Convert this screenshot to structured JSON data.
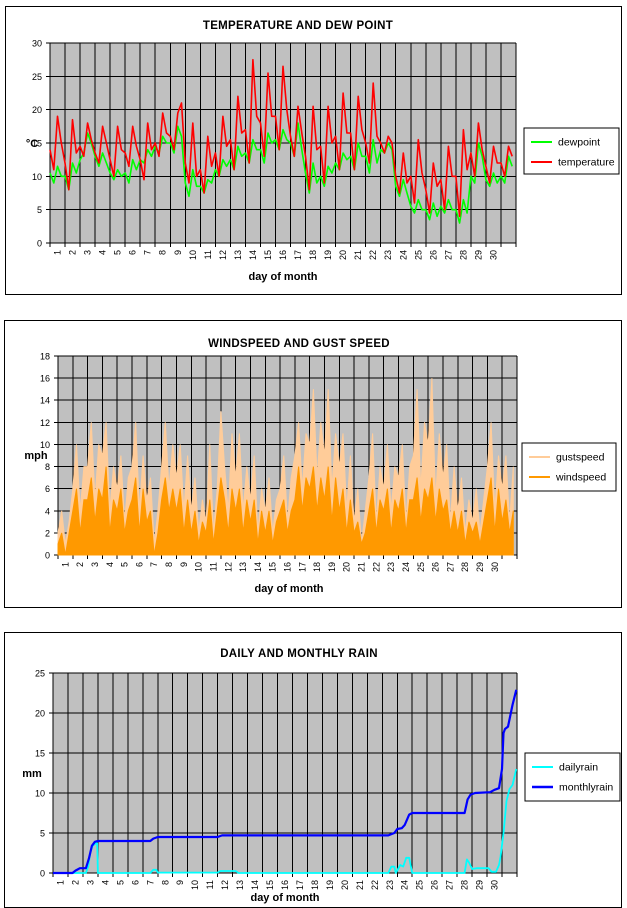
{
  "page": {
    "background": "#FFFFFF",
    "plot_background": "#C0C0C0",
    "grid_color": "#000000"
  },
  "chart_data": [
    {
      "type": "line",
      "title": "TEMPERATURE AND DEW POINT",
      "y_axis": {
        "unit": "°C",
        "min": 0,
        "max": 30,
        "step": 5,
        "ticks": [
          0,
          5,
          10,
          15,
          20,
          25,
          30
        ]
      },
      "x_axis": {
        "label": "day of month",
        "min": 1,
        "max": 32,
        "ticks": [
          1,
          2,
          3,
          4,
          5,
          6,
          7,
          8,
          9,
          10,
          11,
          12,
          13,
          14,
          15,
          16,
          17,
          18,
          19,
          20,
          21,
          22,
          23,
          24,
          25,
          26,
          27,
          28,
          29,
          30
        ]
      },
      "plot_bg": "#C0C0C0",
      "grid": true,
      "legend_position": "right",
      "series": [
        {
          "name": "dewpoint",
          "color": "#00FF00",
          "type": "line",
          "width": 1.6,
          "x_start": 1,
          "x_step": 0.25,
          "values": [
            10.5,
            9,
            11.5,
            10,
            10,
            8,
            12,
            10.5,
            12.5,
            13.5,
            16.5,
            15,
            13,
            11.5,
            13.5,
            12,
            10.5,
            9.5,
            11,
            10,
            10.5,
            9,
            12.5,
            11,
            12.5,
            12,
            14,
            13,
            14.5,
            13.5,
            16,
            15,
            15,
            13.5,
            17.5,
            16,
            9,
            7,
            11,
            8.5,
            8.5,
            7.5,
            9.5,
            9,
            11,
            10,
            12.5,
            11.5,
            12.5,
            11,
            14.5,
            13,
            13.5,
            12,
            15.5,
            14,
            14,
            12,
            16.5,
            15,
            15.5,
            14,
            17,
            15.5,
            15,
            13,
            18,
            14,
            10.5,
            7.5,
            12,
            9,
            10,
            8.5,
            11.5,
            10.5,
            12,
            11,
            13.5,
            12.5,
            13,
            11,
            15,
            13,
            13,
            10.5,
            15.5,
            12,
            14,
            13.5,
            15,
            14,
            8.5,
            7,
            9.5,
            7.5,
            5.5,
            4.5,
            6.5,
            5,
            5,
            3.5,
            6,
            4,
            5.5,
            4.5,
            6.5,
            5,
            5,
            3,
            6.5,
            4.5,
            10,
            9,
            15,
            13,
            9.5,
            8.5,
            10.5,
            9,
            10,
            9,
            13,
            11.5
          ]
        },
        {
          "name": "temperature",
          "color": "#FF0000",
          "type": "line",
          "width": 1.6,
          "x_start": 1,
          "x_step": 0.25,
          "values": [
            14,
            11,
            19,
            15,
            12,
            8,
            18.5,
            13.5,
            14.5,
            13,
            18,
            15.5,
            13.5,
            12,
            17.5,
            15,
            12.5,
            10,
            17.5,
            14,
            13.5,
            11.5,
            17.5,
            14.5,
            12.5,
            9.5,
            18,
            14,
            15,
            13,
            19.5,
            16.5,
            16,
            14,
            19.5,
            21,
            12,
            9,
            18,
            10,
            11,
            7.5,
            16,
            11.5,
            13.5,
            10,
            19,
            14.5,
            15.5,
            11,
            22,
            16.5,
            17,
            12,
            27.5,
            19,
            18,
            13,
            25.5,
            19,
            19,
            14,
            26.5,
            20,
            16,
            13,
            20.5,
            16.5,
            13,
            8,
            20.5,
            14,
            14.5,
            9,
            20.5,
            15,
            16,
            11,
            22.5,
            16.5,
            16.5,
            11,
            22,
            17,
            15,
            12,
            24,
            16,
            15,
            13.5,
            16,
            15,
            10,
            7.5,
            13.5,
            9,
            10,
            6,
            15.5,
            10.5,
            8,
            4.5,
            12,
            8.5,
            9.5,
            5,
            14.5,
            10,
            10,
            4,
            17,
            11,
            13.5,
            10,
            18,
            14,
            11.5,
            9,
            14.5,
            12,
            12,
            10,
            14.5,
            13
          ]
        }
      ]
    },
    {
      "type": "area",
      "title": "WINDSPEED AND GUST SPEED",
      "y_axis": {
        "unit": "mph",
        "min": 0,
        "max": 18,
        "step": 2,
        "ticks": [
          0,
          2,
          4,
          6,
          8,
          10,
          12,
          14,
          16,
          18
        ]
      },
      "x_axis": {
        "label": "day of month",
        "min": 1,
        "max": 32,
        "ticks": [
          1,
          2,
          3,
          4,
          5,
          6,
          7,
          8,
          9,
          10,
          11,
          12,
          13,
          14,
          15,
          16,
          17,
          18,
          19,
          20,
          21,
          22,
          23,
          24,
          25,
          26,
          27,
          28,
          29,
          30
        ]
      },
      "plot_bg": "#C0C0C0",
      "grid": true,
      "legend_position": "right",
      "series": [
        {
          "name": "gustspeed",
          "color": "#FFCC99",
          "type": "area",
          "width": 1,
          "x_start": 1,
          "x_step": 0.25,
          "values": [
            2,
            4,
            1,
            3,
            6,
            10,
            4,
            8,
            8,
            12,
            5,
            10,
            9,
            12,
            4,
            8,
            6,
            9,
            3,
            7,
            8,
            12,
            4,
            9,
            5,
            7,
            1,
            4,
            8,
            12,
            6,
            10,
            7,
            10,
            4,
            9,
            4,
            7,
            2,
            5,
            3,
            10,
            2,
            6,
            13,
            8,
            4,
            11,
            7,
            11,
            4,
            8,
            5,
            9,
            2,
            6,
            4,
            7,
            2,
            5,
            6,
            9,
            3,
            7,
            9,
            12,
            6,
            11,
            10,
            15,
            7,
            12,
            9,
            15,
            6,
            11,
            8,
            11,
            4,
            9,
            3,
            6,
            1,
            4,
            7,
            11,
            3,
            8,
            6,
            10,
            4,
            8,
            7,
            10,
            3,
            8,
            9,
            15,
            6,
            12,
            10,
            16,
            5,
            11,
            7,
            10,
            3,
            8,
            4,
            7,
            2,
            5,
            3,
            6,
            2,
            5,
            8,
            12,
            4,
            9,
            6,
            9,
            3,
            8
          ]
        },
        {
          "name": "windspeed",
          "color": "#FF9900",
          "type": "area",
          "width": 1,
          "x_start": 1,
          "x_step": 0.25,
          "values": [
            1,
            2,
            0,
            2,
            4,
            6,
            2,
            5,
            5,
            7,
            3,
            6,
            5,
            8,
            2,
            5,
            4,
            6,
            2,
            4,
            5,
            7,
            2,
            6,
            3,
            4,
            0,
            2,
            5,
            7,
            4,
            6,
            4,
            6,
            2,
            5,
            2,
            4,
            1,
            3,
            2,
            5,
            1,
            4,
            7,
            5,
            2,
            6,
            4,
            6,
            2,
            5,
            3,
            5,
            1,
            4,
            2,
            4,
            1,
            3,
            4,
            5,
            2,
            4,
            5,
            8,
            4,
            7,
            6,
            8,
            4,
            7,
            5,
            8,
            3,
            7,
            4,
            6,
            2,
            5,
            2,
            3,
            1,
            2,
            4,
            6,
            2,
            5,
            4,
            6,
            2,
            5,
            4,
            6,
            2,
            5,
            5,
            7,
            3,
            6,
            5,
            7,
            3,
            6,
            4,
            5,
            2,
            4,
            2,
            4,
            1,
            3,
            2,
            3,
            1,
            3,
            5,
            7,
            2,
            6,
            3,
            5,
            2,
            4
          ]
        }
      ]
    },
    {
      "type": "line",
      "title": "DAILY AND MONTHLY RAIN",
      "y_axis": {
        "unit": "mm",
        "min": 0,
        "max": 25,
        "step": 5,
        "ticks": [
          0,
          5,
          10,
          15,
          20,
          25
        ]
      },
      "x_axis": {
        "label": "day of month",
        "min": 1,
        "max": 32,
        "ticks": [
          1,
          2,
          3,
          4,
          5,
          6,
          7,
          8,
          9,
          10,
          11,
          12,
          13,
          14,
          15,
          16,
          17,
          18,
          19,
          20,
          21,
          22,
          23,
          24,
          25,
          26,
          27,
          28,
          29,
          30
        ]
      },
      "plot_bg": "#C0C0C0",
      "grid": true,
      "legend_position": "right",
      "series": [
        {
          "name": "dailyrain",
          "color": "#00FFFF",
          "type": "line",
          "width": 1.8,
          "points": [
            [
              1,
              0
            ],
            [
              3.2,
              0
            ],
            [
              3.35,
              0.8
            ],
            [
              3.5,
              2.6
            ],
            [
              3.65,
              3.4
            ],
            [
              3.85,
              3.7
            ],
            [
              3.95,
              3.7
            ],
            [
              4,
              0
            ],
            [
              7.5,
              0
            ],
            [
              7.7,
              0.4
            ],
            [
              7.9,
              0.4
            ],
            [
              8,
              0.05
            ],
            [
              12,
              0.05
            ],
            [
              12.2,
              0.25
            ],
            [
              13.2,
              0.25
            ],
            [
              13.4,
              0
            ],
            [
              23.4,
              0
            ],
            [
              23.6,
              0.8
            ],
            [
              23.8,
              0.8
            ],
            [
              23.9,
              0
            ],
            [
              24.2,
              1
            ],
            [
              24.4,
              0.8
            ],
            [
              24.6,
              1.9
            ],
            [
              24.8,
              1.9
            ],
            [
              25,
              0
            ],
            [
              28.5,
              0
            ],
            [
              28.65,
              1.7
            ],
            [
              28.8,
              1.3
            ],
            [
              29,
              0.5
            ],
            [
              29.3,
              0.6
            ],
            [
              30.1,
              0.6
            ],
            [
              30.3,
              0.15
            ],
            [
              30.6,
              0.15
            ],
            [
              30.8,
              1
            ],
            [
              30.9,
              2
            ],
            [
              31.1,
              5
            ],
            [
              31.3,
              9
            ],
            [
              31.5,
              10.5
            ],
            [
              31.7,
              11
            ],
            [
              31.95,
              13
            ]
          ]
        },
        {
          "name": "monthlyrain",
          "color": "#0000FF",
          "type": "line",
          "width": 2.2,
          "points": [
            [
              1,
              0
            ],
            [
              2.3,
              0
            ],
            [
              2.5,
              0.3
            ],
            [
              2.8,
              0.6
            ],
            [
              3.2,
              0.6
            ],
            [
              3.4,
              1.8
            ],
            [
              3.6,
              3.4
            ],
            [
              3.8,
              3.9
            ],
            [
              4,
              4
            ],
            [
              7.5,
              4
            ],
            [
              7.7,
              4.3
            ],
            [
              8,
              4.5
            ],
            [
              12,
              4.5
            ],
            [
              12.3,
              4.7
            ],
            [
              23.4,
              4.7
            ],
            [
              23.8,
              5
            ],
            [
              24,
              5.5
            ],
            [
              24.3,
              5.6
            ],
            [
              24.5,
              6
            ],
            [
              24.8,
              7.3
            ],
            [
              25,
              7.5
            ],
            [
              28.5,
              7.5
            ],
            [
              28.7,
              9.2
            ],
            [
              28.9,
              9.8
            ],
            [
              29.2,
              10
            ],
            [
              30.2,
              10.1
            ],
            [
              30.5,
              10.4
            ],
            [
              30.8,
              10.6
            ],
            [
              31,
              13
            ],
            [
              31.1,
              17.5
            ],
            [
              31.2,
              18
            ],
            [
              31.4,
              18.3
            ],
            [
              31.7,
              21
            ],
            [
              31.95,
              22.9
            ]
          ]
        }
      ]
    }
  ]
}
